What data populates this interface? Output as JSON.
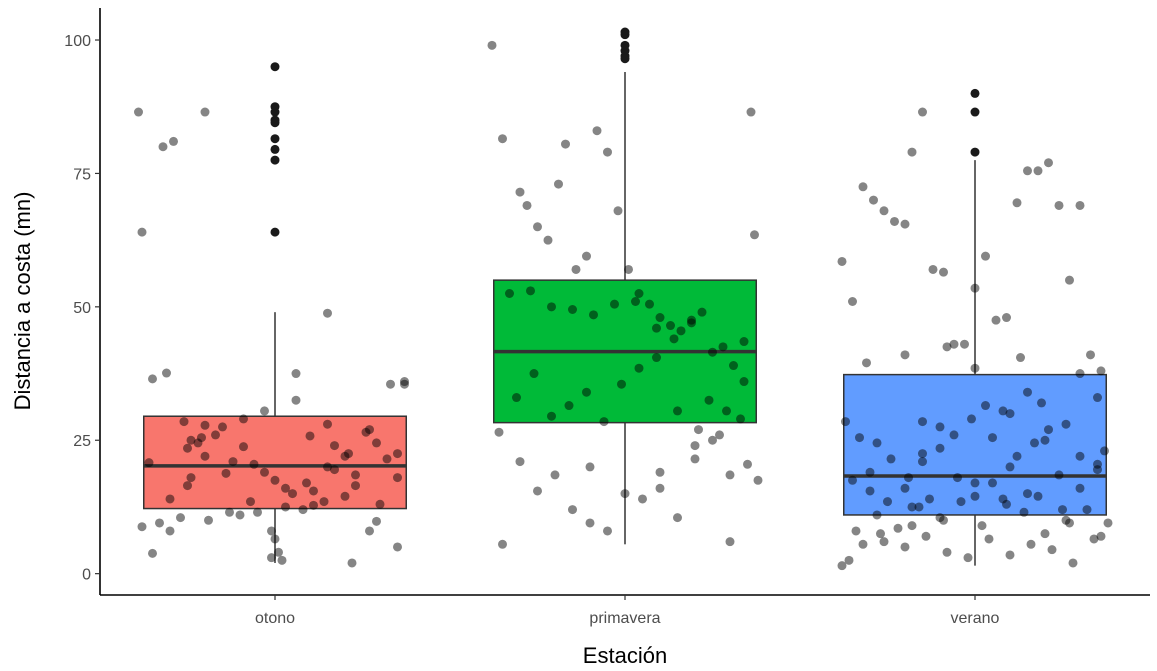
{
  "chart_data": {
    "type": "box",
    "xlabel": "Estación",
    "ylabel": "Distancia a costa (mn)",
    "ylim": [
      -4,
      106
    ],
    "yticks": [
      0,
      25,
      50,
      75,
      100
    ],
    "grid": false,
    "legend": "none",
    "categories": [
      "otono",
      "primavera",
      "verano"
    ],
    "boxes": [
      {
        "category": "otono",
        "color": "#F8766D",
        "q1": 12.2,
        "median": 20.2,
        "q3": 29.5,
        "whisker_low": 2.0,
        "whisker_high": 49.0,
        "outliers": [
          95.0,
          87.5,
          86.5,
          85.0,
          84.5,
          81.5,
          79.5,
          77.5,
          64.0
        ]
      },
      {
        "category": "primavera",
        "color": "#00BA38",
        "q1": 28.3,
        "median": 41.6,
        "q3": 55.0,
        "whisker_low": 5.5,
        "whisker_high": 94.0,
        "outliers": [
          101.5,
          101.0,
          99.0,
          98.0,
          97.0,
          96.5
        ]
      },
      {
        "category": "verano",
        "color": "#619CFF",
        "q1": 11.0,
        "median": 18.3,
        "q3": 37.3,
        "whisker_low": 1.5,
        "whisker_high": 77.5,
        "outliers": [
          90.0,
          86.5,
          79.0
        ]
      }
    ],
    "jitter_points": [
      {
        "category": "otono",
        "dx": [
          -0.39,
          -0.2,
          -0.32,
          -0.29,
          -0.38,
          -0.38,
          -0.35,
          -0.31,
          -0.26,
          -0.24,
          -0.24,
          -0.22,
          -0.2,
          -0.17,
          -0.14,
          -0.12,
          -0.09,
          -0.06,
          -0.03,
          0.0,
          0.03,
          0.06,
          0.08,
          0.11,
          0.14,
          0.17,
          0.2,
          0.23,
          0.26,
          0.29,
          0.32,
          0.35,
          0.37,
          -0.36,
          -0.3,
          -0.25,
          -0.19,
          -0.13,
          -0.07,
          -0.01,
          0.05,
          0.11,
          0.17,
          0.23,
          0.29,
          0.35,
          -0.33,
          -0.27,
          -0.21,
          -0.15,
          -0.09,
          -0.03,
          0.03,
          0.09,
          0.15,
          0.21,
          0.27,
          0.33,
          -0.3,
          -0.2,
          -0.1,
          0.0,
          0.1,
          0.2,
          0.3,
          -0.25,
          -0.05,
          0.15,
          0.35,
          -0.35,
          0.06,
          0.15,
          0.37,
          -0.01,
          0.02,
          0.22,
          0.27,
          0.01
        ],
        "y": [
          86.5,
          86.5,
          80.0,
          81.0,
          64.0,
          8.8,
          3.8,
          37.6,
          28.5,
          18.0,
          25.0,
          24.5,
          22.0,
          26.0,
          18.8,
          21.0,
          23.8,
          20.5,
          19.0,
          17.5,
          16.0,
          37.5,
          12.0,
          15.5,
          13.5,
          24.0,
          14.5,
          18.5,
          26.5,
          9.8,
          21.5,
          18.0,
          36.0,
          20.8,
          14.0,
          16.5,
          10.0,
          11.5,
          13.5,
          8.0,
          15.0,
          12.8,
          19.5,
          16.5,
          24.5,
          22.5,
          9.5,
          10.5,
          25.5,
          27.5,
          29.0,
          30.5,
          12.5,
          17.0,
          20.0,
          22.5,
          27.0,
          35.5,
          8.0,
          27.8,
          11.0,
          6.5,
          25.8,
          22.0,
          13.0,
          23.5,
          11.5,
          28.0,
          5.0,
          36.5,
          32.5,
          48.8,
          35.5,
          3.0,
          2.5,
          2.0,
          8.0,
          4.0
        ]
      },
      {
        "category": "primavera",
        "dx": [
          -0.38,
          -0.35,
          0.36,
          -0.3,
          -0.28,
          -0.25,
          -0.22,
          -0.19,
          -0.17,
          -0.14,
          -0.11,
          -0.08,
          -0.05,
          -0.02,
          0.01,
          0.04,
          0.07,
          0.1,
          0.13,
          0.16,
          0.19,
          0.22,
          0.25,
          0.28,
          0.31,
          0.34,
          -0.36,
          -0.31,
          -0.26,
          -0.21,
          -0.16,
          -0.11,
          -0.06,
          -0.01,
          0.04,
          0.09,
          0.14,
          0.19,
          0.24,
          0.29,
          0.34,
          -0.33,
          -0.27,
          -0.21,
          -0.15,
          -0.09,
          -0.03,
          0.03,
          0.09,
          0.15,
          0.21,
          0.27,
          0.33,
          -0.3,
          -0.2,
          -0.1,
          0.0,
          0.1,
          0.2,
          0.3,
          -0.25,
          -0.15,
          -0.05,
          0.05,
          0.15,
          0.25,
          0.35,
          -0.35,
          -0.1,
          0.1,
          0.2,
          0.38,
          0.3,
          0.37
        ],
        "y": [
          99.0,
          81.5,
          86.5,
          71.5,
          69.0,
          65.0,
          62.5,
          73.0,
          80.5,
          57.0,
          59.5,
          83.0,
          79.0,
          68.0,
          57.0,
          52.5,
          50.5,
          48.0,
          46.5,
          45.5,
          47.5,
          49.0,
          41.5,
          42.5,
          39.0,
          43.5,
          26.5,
          33.0,
          37.5,
          29.5,
          31.5,
          34.0,
          28.5,
          35.5,
          38.5,
          40.5,
          44.0,
          47.0,
          32.5,
          30.5,
          36.0,
          52.5,
          53.0,
          50.0,
          49.5,
          48.5,
          50.5,
          51.0,
          46.0,
          30.5,
          27.0,
          26.0,
          29.0,
          21.0,
          18.5,
          20.0,
          15.0,
          19.0,
          21.5,
          18.5,
          15.5,
          12.0,
          8.0,
          14.0,
          10.5,
          25.0,
          20.5,
          5.5,
          9.5,
          16.0,
          24.0,
          17.5,
          6.0,
          63.5
        ]
      },
      {
        "category": "verano",
        "dx": [
          -0.38,
          -0.35,
          -0.32,
          -0.29,
          -0.26,
          -0.23,
          -0.2,
          -0.18,
          -0.15,
          -0.12,
          -0.09,
          -0.06,
          -0.03,
          0.0,
          0.03,
          0.06,
          0.09,
          0.12,
          0.15,
          0.18,
          0.21,
          0.24,
          0.27,
          0.3,
          0.33,
          0.36,
          -0.37,
          -0.33,
          -0.28,
          -0.24,
          -0.19,
          -0.15,
          -0.1,
          -0.06,
          -0.01,
          0.03,
          0.08,
          0.12,
          0.17,
          0.21,
          0.26,
          0.3,
          0.35,
          -0.35,
          -0.3,
          -0.25,
          -0.2,
          -0.15,
          -0.1,
          -0.05,
          0.0,
          0.05,
          0.1,
          0.15,
          0.2,
          0.25,
          0.3,
          0.35,
          -0.34,
          -0.28,
          -0.22,
          -0.16,
          -0.1,
          -0.04,
          0.02,
          0.08,
          0.14,
          0.2,
          0.26,
          0.32,
          0.38,
          -0.38,
          -0.32,
          -0.26,
          -0.2,
          -0.14,
          -0.08,
          -0.02,
          0.04,
          0.1,
          0.16,
          0.22,
          0.28,
          0.34,
          -0.36,
          -0.27,
          -0.18,
          -0.09,
          0.0,
          0.09,
          0.18,
          0.27,
          0.36,
          -0.3,
          -0.15,
          0.0,
          0.15,
          0.3,
          -0.2,
          0.1,
          0.37,
          -0.13,
          0.19,
          -0.31,
          -0.08,
          0.13,
          0.35,
          0.05,
          -0.18,
          0.24
        ],
        "y": [
          58.5,
          51.0,
          72.5,
          70.0,
          68.0,
          66.0,
          65.5,
          79.0,
          86.5,
          57.0,
          56.5,
          43.0,
          43.0,
          53.5,
          59.5,
          47.5,
          48.0,
          69.5,
          75.5,
          75.5,
          77.0,
          69.0,
          55.0,
          69.0,
          41.0,
          38.0,
          28.5,
          25.5,
          24.5,
          21.5,
          18.0,
          22.5,
          27.5,
          26.0,
          29.0,
          31.5,
          30.5,
          22.0,
          24.5,
          27.0,
          28.0,
          22.0,
          33.0,
          17.5,
          19.0,
          13.5,
          16.0,
          21.0,
          23.5,
          18.0,
          14.5,
          17.0,
          20.0,
          15.0,
          25.0,
          12.0,
          16.0,
          19.5,
          8.0,
          11.0,
          8.5,
          12.5,
          10.5,
          13.5,
          9.0,
          14.0,
          11.5,
          7.5,
          10.0,
          12.0,
          9.5,
          1.5,
          5.5,
          6.0,
          5.0,
          7.0,
          4.0,
          3.0,
          6.5,
          3.5,
          5.5,
          4.5,
          2.0,
          6.5,
          2.5,
          7.5,
          9.0,
          10.0,
          17.0,
          13.0,
          14.5,
          9.5,
          7.0,
          15.5,
          28.5,
          38.5,
          34.0,
          37.5,
          41.0,
          30.0,
          23.0,
          14.0,
          32.0,
          39.5,
          42.5,
          40.5,
          20.5,
          25.5,
          12.5,
          18.5
        ]
      }
    ]
  }
}
